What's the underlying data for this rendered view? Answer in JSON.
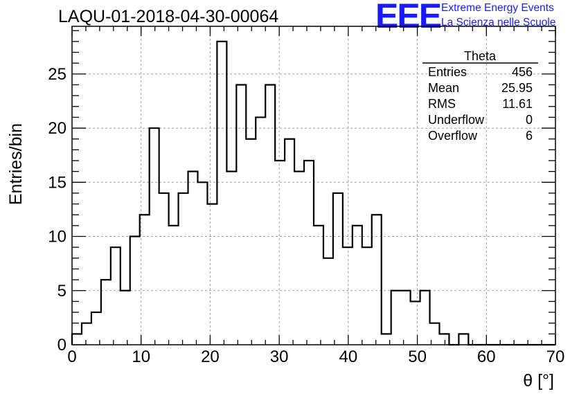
{
  "header": {
    "title": "LAQU-01-2018-04-30-00064",
    "logo_text": "EEE",
    "logo_line1": "Extreme Energy Events",
    "logo_line2": "La Scienza nelle Scuole",
    "logo_color": "#1a1aff"
  },
  "stats_box": {
    "title": "Theta",
    "rows": [
      {
        "label": "Entries",
        "value": "456"
      },
      {
        "label": "Mean",
        "value": "25.95"
      },
      {
        "label": "RMS",
        "value": "11.61"
      },
      {
        "label": "Underflow",
        "value": "0"
      },
      {
        "label": "Overflow",
        "value": "6"
      }
    ]
  },
  "chart_data": {
    "type": "bar",
    "histogram": true,
    "title": "LAQU-01-2018-04-30-00064",
    "xlabel": "θ [°]",
    "ylabel": "Entries/bin",
    "xlim": [
      0,
      70
    ],
    "ylim": [
      0,
      29.4
    ],
    "xticks": [
      0,
      10,
      20,
      30,
      40,
      50,
      60,
      70
    ],
    "yticks": [
      0,
      5,
      10,
      15,
      20,
      25
    ],
    "bin_width": 1.4,
    "grid": true,
    "values": [
      1,
      2,
      3,
      6,
      9,
      5,
      10,
      12,
      20,
      14,
      11,
      14,
      16,
      15,
      13,
      28,
      16,
      24,
      19,
      21,
      24,
      17,
      19,
      16,
      17,
      11,
      8,
      14,
      9,
      11,
      9,
      12,
      1,
      5,
      5,
      4,
      5,
      2,
      1,
      0,
      1,
      0,
      0,
      0,
      0,
      0,
      0,
      0,
      0,
      0
    ]
  }
}
